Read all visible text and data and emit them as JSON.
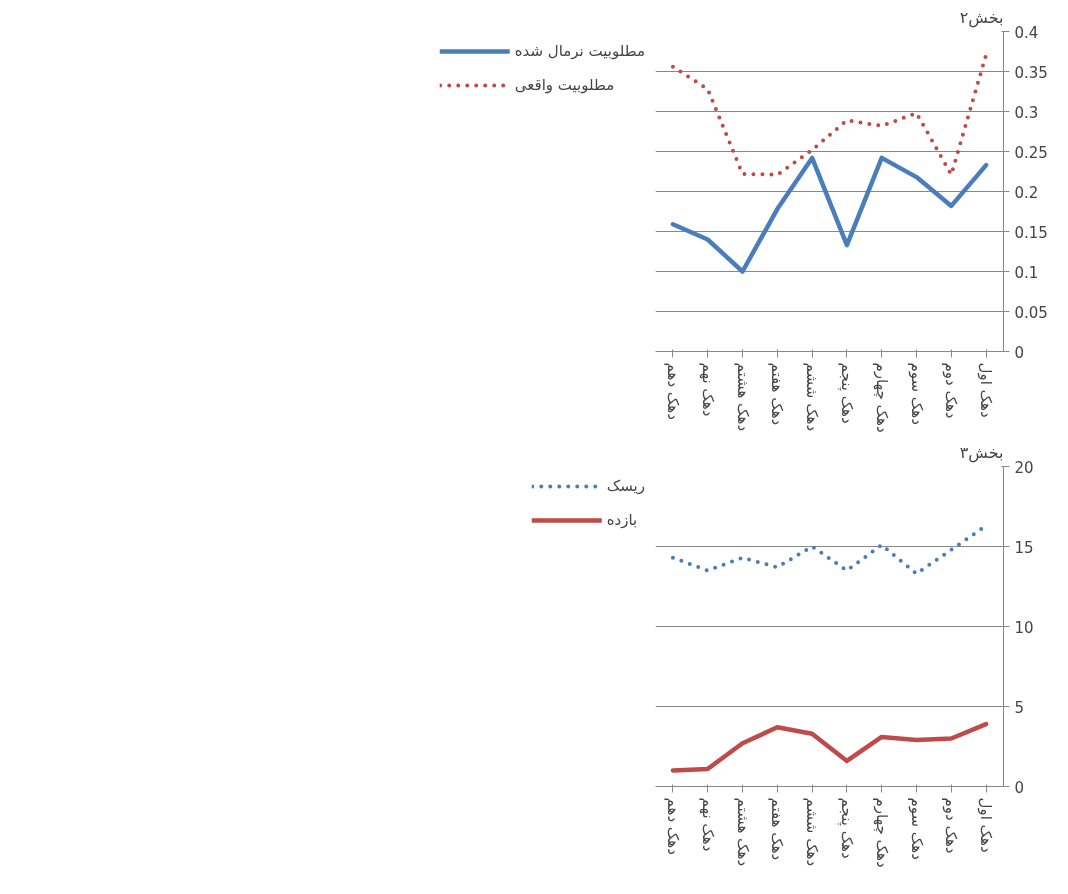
{
  "chart_data": [
    {
      "type": "line",
      "title": "بخش۲",
      "categories": [
        "دهک دهم",
        "دهک نهم",
        "دهک هشتم",
        "دهک هفتم",
        "دهک ششم",
        "دهک پنجم",
        "دهک چهارم",
        "دهک سوم",
        "دهک دوم",
        "دهک اول"
      ],
      "series": [
        {
          "name": "مطلوبیت نرمال شده",
          "color": "#4a7ebb",
          "line_style": "solid",
          "values": [
            0.159,
            0.14,
            0.1,
            0.178,
            0.242,
            0.133,
            0.242,
            0.218,
            0.182,
            0.233
          ]
        },
        {
          "name": "مطلوبیت واقعی",
          "color": "#be4b48",
          "line_style": "dotted",
          "values": [
            0.356,
            0.328,
            0.222,
            0.221,
            0.252,
            0.289,
            0.282,
            0.298,
            0.221,
            0.371
          ]
        }
      ],
      "ylim": [
        0,
        0.4
      ],
      "yticks": [
        0,
        0.05,
        0.1,
        0.15,
        0.2,
        0.25,
        0.3,
        0.35,
        0.4
      ],
      "grid": "y",
      "legend": "left"
    },
    {
      "type": "line",
      "title": "بخش۳",
      "categories": [
        "دهک دهم",
        "دهک نهم",
        "دهک هشتم",
        "دهک هفتم",
        "دهک ششم",
        "دهک پنجم",
        "دهک چهارم",
        "دهک سوم",
        "دهک دوم",
        "دهک اول"
      ],
      "series": [
        {
          "name": "ریسک",
          "color": "#4a7ebb",
          "line_style": "dotted",
          "values": [
            14.3,
            13.5,
            14.3,
            13.7,
            15.0,
            13.5,
            15.1,
            13.3,
            14.8,
            16.3
          ]
        },
        {
          "name": "بازده",
          "color": "#be4b48",
          "line_style": "solid",
          "values": [
            1.0,
            1.1,
            2.7,
            3.7,
            3.3,
            1.6,
            3.1,
            2.9,
            3.0,
            3.9
          ]
        }
      ],
      "ylim": [
        0,
        20
      ],
      "yticks": [
        0,
        5,
        10,
        15,
        20
      ],
      "grid": "y",
      "legend": "left"
    }
  ]
}
